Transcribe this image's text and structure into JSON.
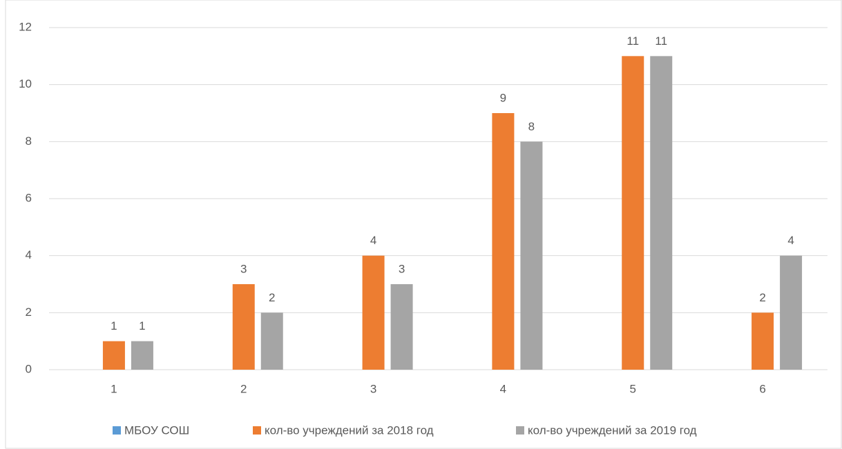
{
  "chart_data": {
    "type": "bar",
    "categories": [
      "1",
      "2",
      "3",
      "4",
      "5",
      "6"
    ],
    "series": [
      {
        "name": "МБОУ СОШ",
        "color": "#5b9bd5",
        "values": [
          null,
          null,
          null,
          null,
          null,
          null
        ]
      },
      {
        "name": "кол-во учреждений за 2018 год",
        "color": "#ed7d31",
        "values": [
          1,
          3,
          4,
          9,
          11,
          2
        ]
      },
      {
        "name": "кол-во учреждений за 2019 год",
        "color": "#a5a5a5",
        "values": [
          1,
          2,
          3,
          8,
          11,
          4
        ]
      }
    ],
    "ylim": [
      0,
      12
    ],
    "yticks": [
      0,
      2,
      4,
      6,
      8,
      10,
      12
    ],
    "grid": true,
    "legend": "bottom",
    "data_labels": true
  }
}
